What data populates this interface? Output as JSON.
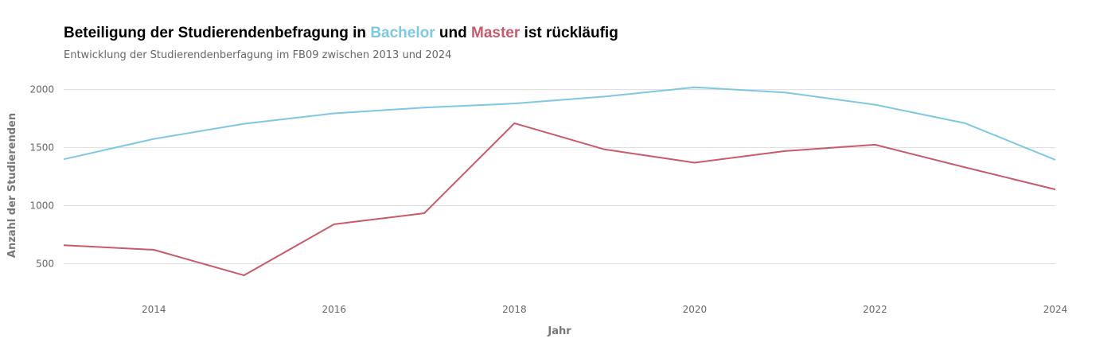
{
  "header": {
    "title_part1": "Beteiligung der Studierendenbefragung in ",
    "title_bachelor": "Bachelor",
    "title_part2": " und ",
    "title_master": "Master",
    "title_part3": " ist rückläufig",
    "subtitle": "Entwicklung der Studierendenberfagung im FB09 zwischen 2013 und 2024"
  },
  "chart_data": {
    "type": "line",
    "title": "Beteiligung der Studierendenbefragung in Bachelor und Master ist rückläufig",
    "subtitle": "Entwicklung der Studierendenberfagung im FB09 zwischen 2013 und 2024",
    "xlabel": "Jahr",
    "ylabel": "Anzahl der Studierenden",
    "x": [
      2013,
      2014,
      2015,
      2016,
      2017,
      2018,
      2019,
      2020,
      2021,
      2022,
      2023,
      2024
    ],
    "xlim": [
      2013,
      2024
    ],
    "ylim": [
      250,
      2100
    ],
    "x_ticks": [
      2014,
      2016,
      2018,
      2020,
      2022,
      2024
    ],
    "y_ticks": [
      500,
      1000,
      1500,
      2000
    ],
    "grid": "horizontal",
    "series": [
      {
        "name": "Bachelor",
        "color": "#7ec8e3",
        "values": [
          1400,
          1575,
          1705,
          1795,
          1845,
          1880,
          1940,
          2020,
          1975,
          1870,
          1710,
          1395
        ]
      },
      {
        "name": "Master",
        "color": "#c85a6a",
        "values": [
          660,
          620,
          400,
          840,
          935,
          1710,
          1485,
          1370,
          1470,
          1525,
          1330,
          1140
        ]
      }
    ]
  }
}
